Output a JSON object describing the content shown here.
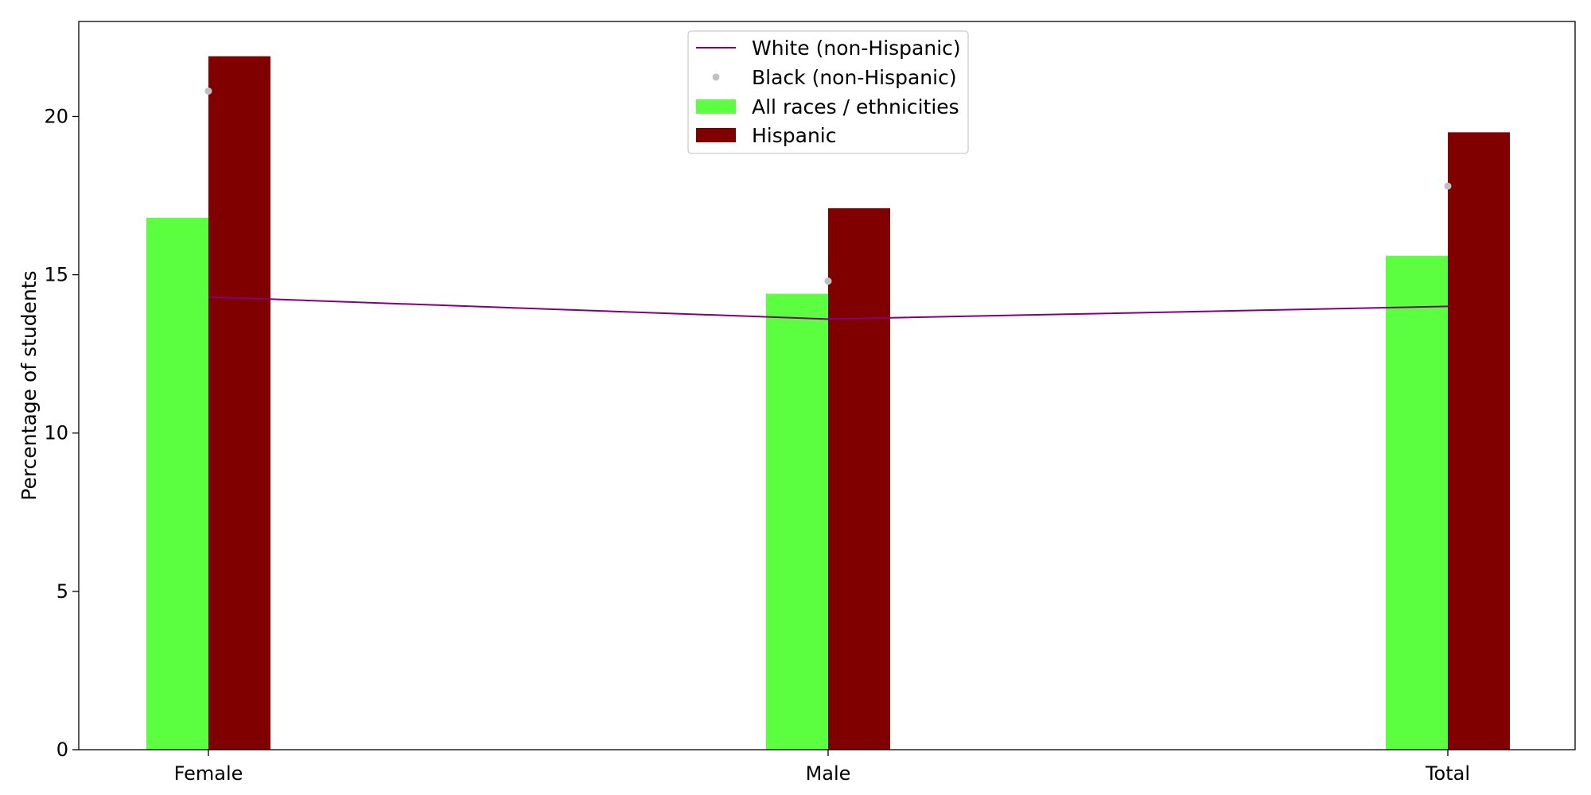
{
  "chart_data": {
    "type": "bar",
    "title": "",
    "xlabel": "",
    "ylabel": "Percentage of students",
    "categories": [
      "Female",
      "Male",
      "Total"
    ],
    "ylim": [
      0,
      23
    ],
    "yticks": [
      0,
      5,
      10,
      15,
      20
    ],
    "grid": false,
    "legend_position": "top-center",
    "series": [
      {
        "name": "White (non-Hispanic)",
        "kind": "line",
        "color": "#800080",
        "values": [
          14.3,
          13.6,
          14.0
        ]
      },
      {
        "name": "Black (non-Hispanic)",
        "kind": "scatter",
        "color": "#c0c0c0",
        "values": [
          20.8,
          14.8,
          17.8
        ]
      },
      {
        "name": "All races / ethnicities",
        "kind": "bar",
        "color": "#5cff40",
        "values": [
          16.8,
          14.4,
          15.6
        ]
      },
      {
        "name": "Hispanic",
        "kind": "bar",
        "color": "#800000",
        "values": [
          21.9,
          17.1,
          19.5
        ]
      }
    ]
  }
}
